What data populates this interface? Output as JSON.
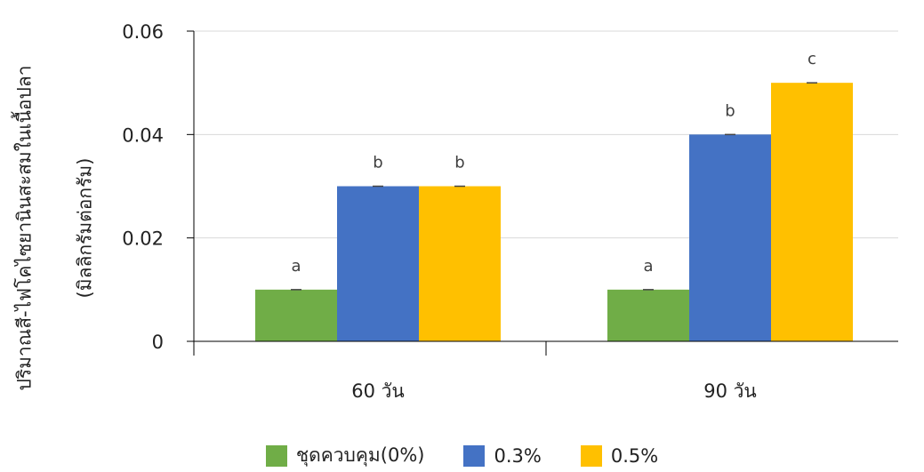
{
  "chart_data": {
    "type": "bar",
    "categories": [
      "60 วัน",
      "90 วัน"
    ],
    "series": [
      {
        "name": "ชุดควบคุม(0%)",
        "values": [
          0.01,
          0.01
        ],
        "letters": [
          "a",
          "a"
        ],
        "color": "#70AD47"
      },
      {
        "name": "0.3%",
        "values": [
          0.03,
          0.04
        ],
        "letters": [
          "b",
          "b"
        ],
        "color": "#4472C4"
      },
      {
        "name": "0.5%",
        "values": [
          0.03,
          0.05
        ],
        "letters": [
          "b",
          "c"
        ],
        "color": "#FFC000"
      }
    ],
    "ylabel_line1": "ปริมาณสี-ไฟโคไซยานินสะสมในเนื้อปลา",
    "ylabel_line2": "(มิลลิกรัมต่อกรัม)",
    "ylim": [
      0,
      0.06
    ],
    "yticks": [
      "0",
      "0.02",
      "0.04",
      "0.06"
    ],
    "ytick_values": [
      0,
      0.02,
      0.04,
      0.06
    ],
    "grid": true,
    "legend_position": "bottom"
  }
}
